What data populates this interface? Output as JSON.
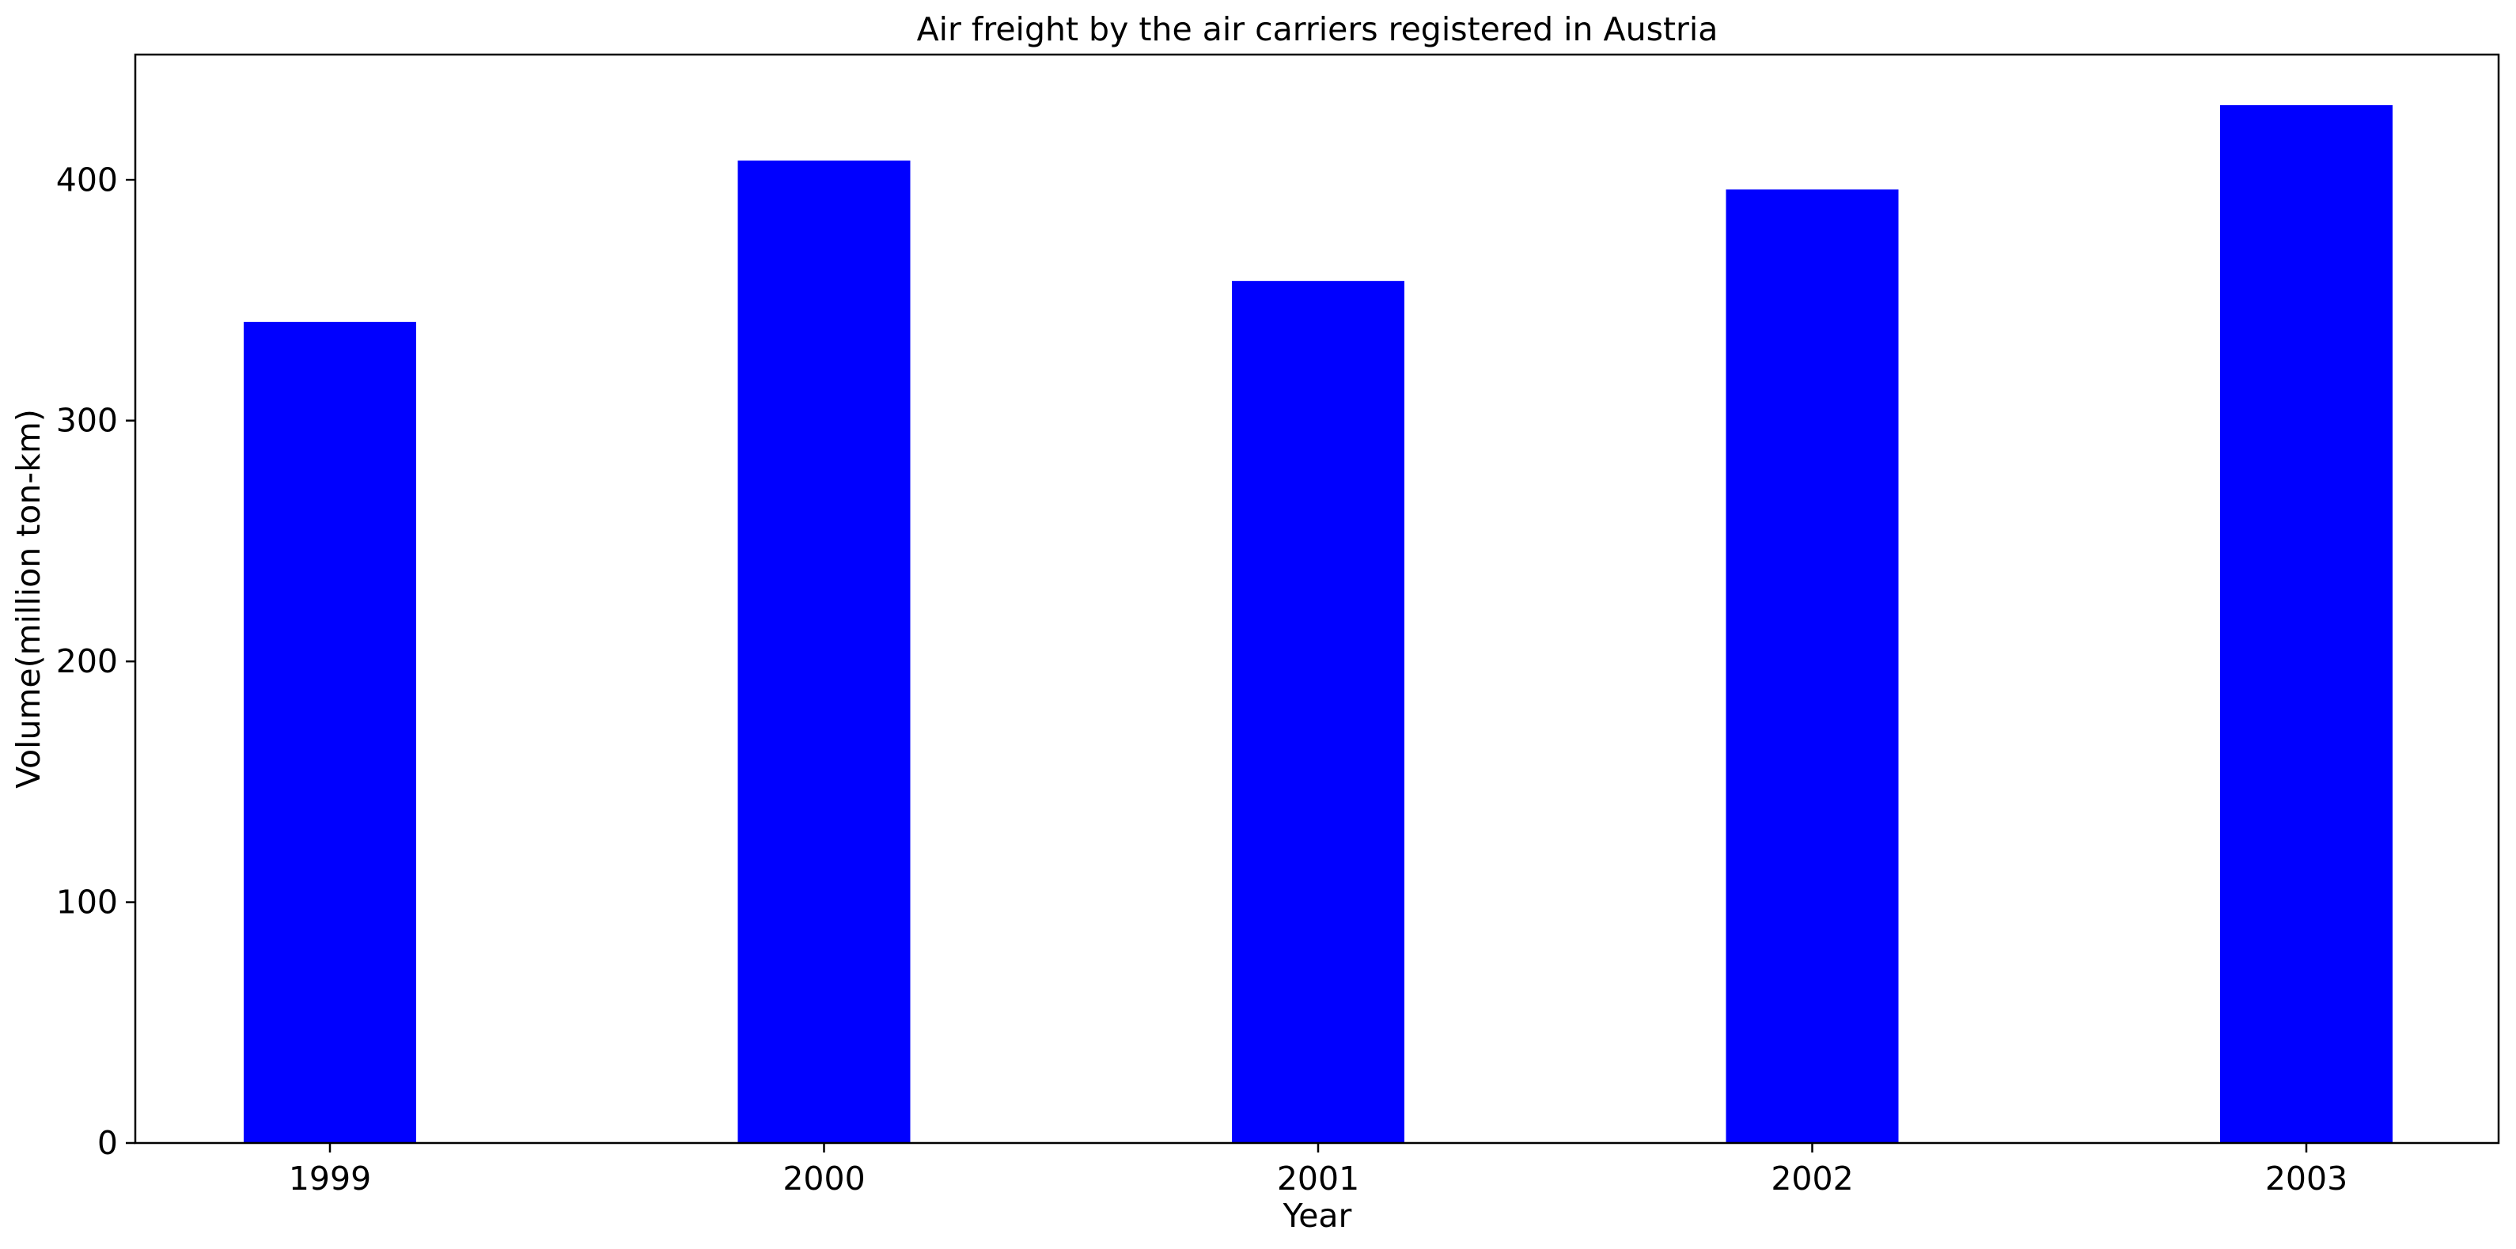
{
  "chart_data": {
    "type": "bar",
    "title": "Air freight by the air carriers registered in Austria",
    "xlabel": "Year",
    "ylabel": "Volume(million ton-km)",
    "categories": [
      "1999",
      "2000",
      "2001",
      "2002",
      "2003"
    ],
    "values": [
      341,
      408,
      358,
      396,
      431
    ],
    "ylim": [
      0,
      452
    ],
    "yticks": [
      0,
      100,
      200,
      300,
      400
    ],
    "grid": false,
    "legend": "none",
    "bar_color": "#0000ff"
  }
}
